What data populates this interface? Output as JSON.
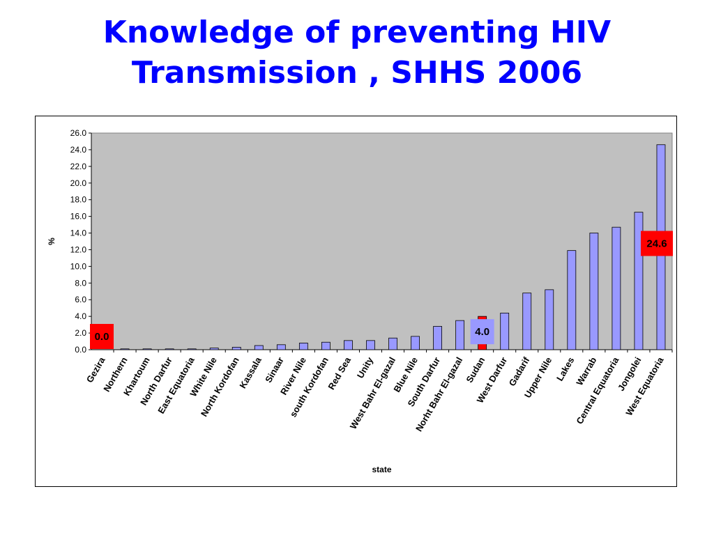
{
  "title": {
    "line1": "Knowledge of preventing HIV",
    "line2": "Transmission , SHHS 2006"
  },
  "colors": {
    "title": "#0000ff",
    "plot_bg": "#c0c0c0",
    "bar": "#9999ff",
    "highlight_bar": "#ff0000",
    "callout_red": "#ff0000",
    "callout_blue": "#9999ff"
  },
  "chart_data": {
    "type": "bar",
    "xlabel": "state",
    "ylabel": "%",
    "ylim": [
      0,
      26
    ],
    "ytick_step": 2,
    "grid": false,
    "legend": "none",
    "categories": [
      "Gezira",
      "Northern",
      "Khartoum",
      "North Darfur",
      "East Equatoria",
      "White Nile",
      "North Kordofan",
      "Kassala",
      "Sinaar",
      "River Nile",
      "south Kordofan",
      "Red Sea",
      "Unity",
      "West Bahr El-gazal",
      "Blue Nile",
      "South Darfur",
      "Norht Bahr El-gazal",
      "Sudan",
      "West Darfur",
      "Gadarif",
      "Upper Nile",
      "Lakes",
      "Warrab",
      "Central Equatoria",
      "Jongolei",
      "West Equatoria"
    ],
    "values": [
      0.0,
      0.1,
      0.1,
      0.1,
      0.1,
      0.2,
      0.3,
      0.5,
      0.6,
      0.8,
      0.9,
      1.1,
      1.1,
      1.4,
      1.6,
      2.8,
      3.5,
      4.0,
      4.4,
      6.8,
      7.2,
      11.9,
      14.0,
      14.7,
      16.5,
      24.6
    ],
    "highlight_category": "Sudan",
    "annotations": [
      {
        "category": "Gezira",
        "text": "0.0",
        "style": "red"
      },
      {
        "category": "Sudan",
        "text": "4.0",
        "style": "blue"
      },
      {
        "category": "West Equatoria",
        "text": "24.6",
        "style": "red"
      }
    ]
  }
}
